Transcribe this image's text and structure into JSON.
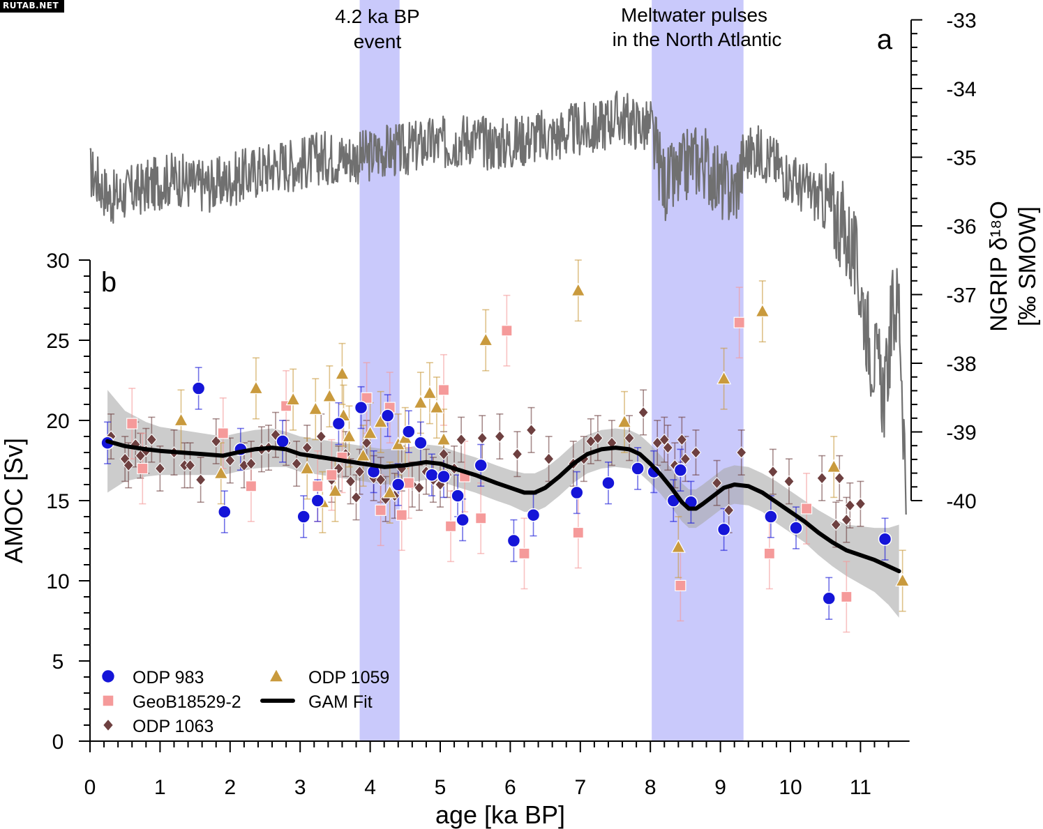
{
  "watermark": "RUTAB.NET",
  "chart_data": [
    {
      "panel": "a",
      "type": "line",
      "ylabel_line1": "NGRIP δ¹⁸O",
      "ylabel_line2": "[‰ SMOW]",
      "y_axis_side": "right",
      "ylim": [
        -40,
        -33
      ],
      "y_ticks": [
        -33,
        -34,
        -35,
        -36,
        -37,
        -38,
        -39,
        -40
      ],
      "series": [
        {
          "color": "#707070",
          "x": [
            0.0,
            0.3,
            0.6,
            0.9,
            1.2,
            1.5,
            1.8,
            2.1,
            2.4,
            2.7,
            3.0,
            3.3,
            3.6,
            3.9,
            4.2,
            4.5,
            4.8,
            5.1,
            5.4,
            5.7,
            6.0,
            6.3,
            6.6,
            6.9,
            7.2,
            7.5,
            7.8,
            8.0,
            8.2,
            8.4,
            8.6,
            8.8,
            9.0,
            9.2,
            9.35,
            9.5,
            9.7,
            9.9,
            10.1,
            10.3,
            10.5,
            10.7,
            10.9,
            11.05,
            11.15,
            11.25,
            11.35,
            11.45,
            11.55,
            11.65
          ],
          "y": [
            -35.2,
            -35.6,
            -35.5,
            -35.4,
            -35.3,
            -35.4,
            -35.4,
            -35.3,
            -35.2,
            -35.1,
            -35.1,
            -35.0,
            -35.0,
            -35.0,
            -34.9,
            -34.9,
            -34.8,
            -34.8,
            -34.7,
            -34.8,
            -34.8,
            -34.7,
            -34.7,
            -34.6,
            -34.6,
            -34.4,
            -34.5,
            -34.6,
            -35.4,
            -35.3,
            -35.0,
            -35.1,
            -35.4,
            -35.5,
            -35.0,
            -34.9,
            -35.0,
            -35.2,
            -35.4,
            -35.5,
            -35.7,
            -35.9,
            -36.4,
            -37.2,
            -37.8,
            -38.1,
            -38.5,
            -37.3,
            -37.1,
            -39.8
          ]
        }
      ],
      "annotations": [
        {
          "text": "a"
        },
        {
          "line1": "4.2 ka BP",
          "line2": "event",
          "x_range": [
            3.85,
            4.42
          ]
        },
        {
          "line1": "Meltwater pulses",
          "line2": "in the North Atlantic",
          "x_range": [
            8.02,
            9.33
          ]
        }
      ],
      "shade_color": "#c9c9fb"
    },
    {
      "panel": "b",
      "type": "scatter",
      "panel_label": "b",
      "xlabel": "age [ka BP]",
      "ylabel": "AMOC [Sv]",
      "xlim": [
        0,
        11.7
      ],
      "ylim": [
        0,
        30
      ],
      "x_ticks": [
        0,
        1,
        2,
        3,
        4,
        5,
        6,
        7,
        8,
        9,
        10,
        11
      ],
      "y_ticks": [
        0,
        5,
        10,
        15,
        20,
        25,
        30
      ],
      "legend_position": "bottom-left",
      "series": [
        {
          "name": "ODP 983",
          "marker": "circle",
          "color": "#1515d8",
          "error": 1.3,
          "x": [
            0.25,
            1.55,
            1.92,
            2.15,
            2.75,
            3.05,
            3.25,
            3.55,
            3.87,
            4.05,
            4.25,
            4.4,
            4.55,
            4.72,
            4.88,
            5.05,
            5.25,
            5.32,
            5.58,
            6.05,
            6.33,
            6.95,
            7.4,
            7.82,
            8.05,
            8.33,
            8.43,
            8.58,
            9.05,
            9.72,
            10.08,
            10.55,
            11.35
          ],
          "y": [
            18.6,
            22.0,
            14.3,
            18.2,
            18.7,
            14.0,
            15.0,
            19.8,
            20.8,
            16.8,
            20.3,
            16.0,
            19.3,
            18.6,
            16.6,
            16.5,
            15.3,
            13.8,
            17.2,
            12.5,
            14.1,
            15.5,
            16.1,
            17.0,
            16.8,
            15.0,
            16.9,
            14.9,
            13.2,
            14.0,
            13.3,
            8.9,
            12.6
          ]
        },
        {
          "name": "GeoB18529-2",
          "marker": "square",
          "color": "#f59a9a",
          "error": 2.2,
          "x": [
            0.6,
            0.75,
            1.9,
            2.3,
            2.8,
            3.25,
            3.45,
            3.6,
            3.95,
            4.15,
            4.28,
            4.45,
            4.55,
            5.05,
            5.15,
            5.35,
            5.58,
            5.95,
            6.2,
            6.97,
            8.43,
            9.27,
            9.7,
            10.23,
            10.8
          ],
          "y": [
            19.8,
            17.0,
            19.2,
            15.9,
            20.9,
            15.9,
            16.6,
            17.7,
            21.4,
            14.4,
            20.8,
            14.1,
            16.1,
            21.9,
            13.4,
            16.5,
            13.9,
            25.6,
            11.7,
            13.0,
            9.7,
            26.1,
            11.7,
            14.5,
            9.0
          ]
        },
        {
          "name": "ODP 1059",
          "marker": "triangle",
          "color": "#c99a3d",
          "error": 1.9,
          "x": [
            1.3,
            1.87,
            2.37,
            2.9,
            3.1,
            3.22,
            3.32,
            3.42,
            3.5,
            3.6,
            3.62,
            3.7,
            3.9,
            4.0,
            4.15,
            4.28,
            4.4,
            4.5,
            4.72,
            4.85,
            4.95,
            5.05,
            5.65,
            6.97,
            7.63,
            8.4,
            9.05,
            9.6,
            10.62,
            11.6
          ],
          "y": [
            20.0,
            16.7,
            22.0,
            21.3,
            17.0,
            20.7,
            14.9,
            21.5,
            15.6,
            22.9,
            20.3,
            19.0,
            17.8,
            19.2,
            19.9,
            15.5,
            18.5,
            18.9,
            21.1,
            21.7,
            20.8,
            18.8,
            25.0,
            28.1,
            19.9,
            12.1,
            22.6,
            26.8,
            17.1,
            10.0
          ]
        },
        {
          "name": "ODP 1063",
          "marker": "diamond",
          "color": "#6e4040",
          "error": 1.4,
          "x": [
            0.3,
            0.5,
            0.55,
            0.65,
            0.72,
            0.8,
            0.88,
            1.0,
            1.2,
            1.35,
            1.43,
            1.58,
            1.8,
            2.0,
            2.2,
            2.3,
            2.45,
            2.55,
            2.65,
            2.8,
            2.95,
            3.1,
            3.3,
            3.45,
            3.55,
            3.65,
            3.72,
            3.8,
            3.85,
            3.95,
            4.05,
            4.15,
            4.22,
            4.35,
            4.45,
            4.6,
            4.7,
            4.8,
            4.9,
            5.0,
            5.05,
            5.1,
            5.2,
            5.3,
            5.6,
            5.85,
            6.1,
            6.3,
            6.55,
            6.9,
            7.05,
            7.15,
            7.25,
            7.45,
            7.7,
            7.9,
            8.1,
            8.2,
            8.25,
            8.35,
            8.45,
            8.5,
            8.65,
            8.95,
            9.12,
            9.3,
            9.75,
            9.98,
            10.45,
            10.65,
            10.7,
            10.8,
            10.85,
            11.0
          ],
          "y": [
            19.0,
            17.6,
            17.2,
            18.5,
            17.8,
            18.1,
            18.8,
            17.0,
            18.0,
            17.2,
            17.2,
            16.3,
            18.7,
            17.5,
            17.2,
            17.3,
            18.2,
            18.3,
            19.1,
            18.6,
            17.3,
            18.3,
            19.0,
            16.3,
            17.0,
            17.9,
            16.2,
            15.2,
            16.8,
            18.6,
            16.4,
            16.3,
            15.1,
            15.3,
            17.0,
            16.0,
            15.8,
            16.8,
            16.3,
            16.0,
            17.9,
            16.6,
            17.0,
            18.8,
            18.9,
            19.0,
            17.9,
            19.4,
            17.6,
            17.3,
            17.6,
            18.7,
            18.9,
            18.6,
            18.9,
            20.5,
            18.6,
            18.8,
            18.3,
            17.2,
            18.8,
            17.6,
            18.0,
            16.1,
            14.4,
            18.0,
            16.8,
            16.2,
            16.4,
            13.5,
            16.4,
            13.8,
            14.7,
            14.8
          ]
        },
        {
          "name": "GAM Fit",
          "marker": "line",
          "color": "#000000",
          "band_color": "#aaaaaa",
          "x": [
            0.25,
            0.5,
            0.8,
            1.0,
            1.3,
            1.6,
            1.9,
            2.1,
            2.35,
            2.6,
            2.8,
            3.0,
            3.3,
            3.6,
            3.9,
            4.2,
            4.5,
            4.8,
            5.0,
            5.2,
            5.5,
            5.8,
            6.0,
            6.2,
            6.35,
            6.5,
            6.7,
            6.9,
            7.1,
            7.3,
            7.5,
            7.7,
            7.85,
            8.0,
            8.15,
            8.3,
            8.45,
            8.55,
            8.65,
            8.75,
            8.9,
            9.05,
            9.2,
            9.4,
            9.6,
            9.8,
            10.0,
            10.2,
            10.4,
            10.6,
            10.8,
            11.0,
            11.2,
            11.4,
            11.55
          ],
          "y": [
            18.7,
            18.4,
            18.2,
            18.1,
            18.0,
            17.9,
            17.8,
            18.0,
            18.2,
            18.3,
            18.2,
            17.9,
            17.7,
            17.5,
            17.3,
            17.1,
            17.2,
            17.4,
            17.3,
            17.0,
            16.6,
            16.1,
            15.8,
            15.5,
            15.5,
            15.8,
            16.5,
            17.3,
            17.9,
            18.2,
            18.3,
            18.2,
            17.9,
            17.3,
            16.6,
            15.8,
            14.9,
            14.5,
            14.5,
            14.8,
            15.3,
            15.8,
            16.0,
            15.9,
            15.5,
            14.9,
            14.3,
            13.7,
            13.0,
            12.4,
            11.9,
            11.6,
            11.3,
            10.9,
            10.6
          ],
          "band": [
            3.2,
            2.2,
            1.7,
            1.5,
            1.4,
            1.3,
            1.2,
            1.2,
            1.2,
            1.2,
            1.1,
            1.1,
            1.1,
            1.1,
            1.1,
            1.1,
            1.1,
            1.1,
            1.1,
            1.1,
            1.1,
            1.1,
            1.1,
            1.2,
            1.2,
            1.2,
            1.2,
            1.2,
            1.2,
            1.2,
            1.2,
            1.2,
            1.2,
            1.2,
            1.2,
            1.2,
            1.2,
            1.2,
            1.2,
            1.2,
            1.2,
            1.2,
            1.2,
            1.2,
            1.2,
            1.3,
            1.3,
            1.3,
            1.4,
            1.5,
            1.6,
            1.8,
            2.0,
            2.4,
            2.9
          ]
        }
      ]
    }
  ]
}
